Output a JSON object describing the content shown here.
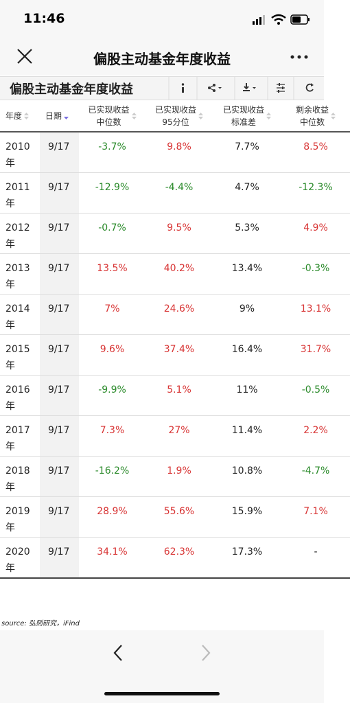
{
  "status": {
    "time": "11:46"
  },
  "nav": {
    "title": "偏股主动基金年度收益"
  },
  "table": {
    "title": "偏股主动基金年度收益",
    "headers": [
      [
        "年度"
      ],
      [
        "日期"
      ],
      [
        "已实现收益",
        "中位数"
      ],
      [
        "已实现收益",
        "95分位"
      ],
      [
        "已实现收益",
        "标准差"
      ],
      [
        "剩余收益",
        "中位数"
      ]
    ],
    "rows": [
      [
        "2010年",
        "9/17",
        "-3.7%",
        "9.8%",
        "7.7%",
        "8.5%"
      ],
      [
        "2011年",
        "9/17",
        "-12.9%",
        "-4.4%",
        "4.7%",
        "-12.3%"
      ],
      [
        "2012年",
        "9/17",
        "-0.7%",
        "9.5%",
        "5.3%",
        "4.9%"
      ],
      [
        "2013年",
        "9/17",
        "13.5%",
        "40.2%",
        "13.4%",
        "-0.3%"
      ],
      [
        "2014年",
        "9/17",
        "7%",
        "24.6%",
        "9%",
        "13.1%"
      ],
      [
        "2015年",
        "9/17",
        "9.6%",
        "37.4%",
        "16.4%",
        "31.7%"
      ],
      [
        "2016年",
        "9/17",
        "-9.9%",
        "5.1%",
        "11%",
        "-0.5%"
      ],
      [
        "2017年",
        "9/17",
        "7.3%",
        "27%",
        "11.4%",
        "2.2%"
      ],
      [
        "2018年",
        "9/17",
        "-16.2%",
        "1.9%",
        "10.8%",
        "-4.7%"
      ],
      [
        "2019年",
        "9/17",
        "28.9%",
        "55.6%",
        "15.9%",
        "7.1%"
      ],
      [
        "2020年",
        "9/17",
        "34.1%",
        "62.3%",
        "17.3%",
        "-"
      ]
    ],
    "source": "source: 弘则研究，iFind"
  }
}
